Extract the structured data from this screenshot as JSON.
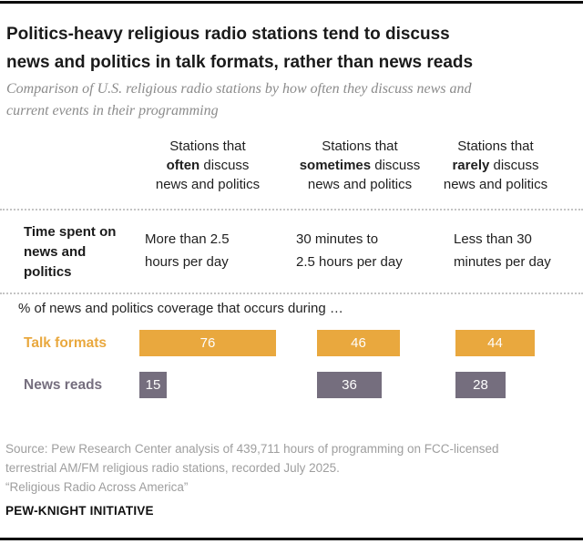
{
  "header": {
    "title": "Politics-heavy religious radio stations tend to discuss\nnews and politics in talk formats, rather than news reads",
    "subtitle": "Comparison of U.S. religious radio stations by how often they discuss news and\ncurrent events in their programming"
  },
  "table": {
    "time_row_label": "Time spent on\nnews and\npolitics",
    "unit_note": "% of news and politics coverage that occurs during …",
    "columns": [
      {
        "header_line1": "Stations that",
        "header_bold": "often",
        "header_rest": " discuss",
        "header_line3": "news and politics",
        "time_spent": "More than 2.5\nhours per day"
      },
      {
        "header_line1": "Stations that",
        "header_bold": "sometimes",
        "header_rest": " discuss",
        "header_line3": "news and politics",
        "time_spent": "30 minutes to\n2.5 hours per day"
      },
      {
        "header_line1": "Stations that",
        "header_bold": "rarely",
        "header_rest": " discuss",
        "header_line3": "news and politics",
        "time_spent": "Less than 30\nminutes per day"
      }
    ]
  },
  "chart_data": {
    "type": "bar",
    "orientation": "horizontal",
    "title": "Politics-heavy religious radio stations tend to discuss news and politics in talk formats, rather than news reads",
    "subtitle": "Comparison of U.S. religious radio stations by how often they discuss news and current events in their programming",
    "value_note": "% of news and politics coverage that occurs during …",
    "categories": [
      "Stations that often discuss news and politics — More than 2.5 hours per day",
      "Stations that sometimes discuss news and politics — 30 minutes to 2.5 hours per day",
      "Stations that rarely discuss news and politics — Less than 30 minutes per day"
    ],
    "series": [
      {
        "name": "Talk formats",
        "color": "#e9a83e",
        "values": [
          76,
          46,
          44
        ]
      },
      {
        "name": "News reads",
        "color": "#756e7e",
        "values": [
          15,
          36,
          28
        ]
      }
    ],
    "xlim": [
      0,
      100
    ],
    "grid": false,
    "legend_position": "row-labels-left"
  },
  "footer": {
    "source": "Source: Pew Research Center analysis of 439,711 hours of programming on FCC-licensed\nterrestrial AM/FM religious radio stations, recorded July 2025.\n“Religious Radio Across America”",
    "brand": "PEW-KNIGHT INITIATIVE"
  },
  "colors": {
    "talk_formats": "#e9a83e",
    "news_reads": "#756e7e",
    "rule": "#0c0c0c"
  }
}
